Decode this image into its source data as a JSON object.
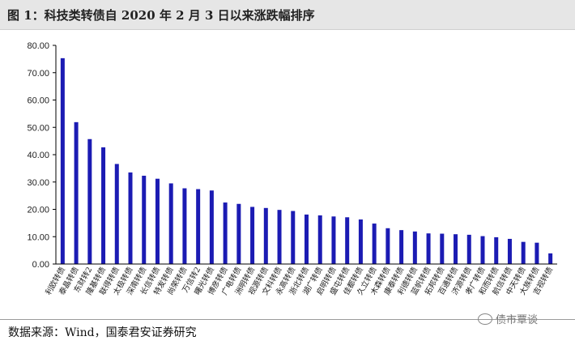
{
  "header": {
    "title": "图 1：科技类转债自 2020 年 2 月 3 日以来涨跌幅排序"
  },
  "footer": {
    "source": "数据来源：Wind，国泰君安证券研究",
    "watermark": "债市覃谈"
  },
  "colors": {
    "bar": "#1b1bb3",
    "title_background": "#e6e6e6"
  },
  "chart_data": {
    "type": "bar",
    "title": "",
    "xlabel": "",
    "ylabel": "",
    "ylim": [
      0,
      80
    ],
    "yticks": [
      "0.00",
      "10.00",
      "20.00",
      "30.00",
      "40.00",
      "50.00",
      "60.00",
      "70.00",
      "80.00"
    ],
    "grid": false,
    "legend": "none",
    "categories": [
      "利欧转债",
      "泰晶转债",
      "东财转2",
      "隆基转债",
      "联得转债",
      "太极转债",
      "深南转债",
      "长信转债",
      "特发转债",
      "尚荣转债",
      "万信转2",
      "曙光转债",
      "博彦转债",
      "广电转债",
      "洲明转债",
      "视源转债",
      "文科转债",
      "永高转债",
      "浙北转债",
      "湖广转债",
      "启明转债",
      "盛屯转债",
      "佳都转债",
      "久立转债",
      "木森转债",
      "康泰转债",
      "利德转债",
      "蓝帆转债",
      "拓邦转债",
      "百通转债",
      "济源转债",
      "孝广转债",
      "和而转债",
      "航信转债",
      "中天转债",
      "大族转债",
      "吉视转债"
    ],
    "values": [
      75.3,
      51.9,
      45.7,
      42.7,
      36.6,
      33.5,
      32.3,
      31.2,
      29.5,
      27.7,
      27.4,
      26.9,
      22.5,
      22.0,
      20.9,
      20.5,
      19.8,
      19.4,
      18.1,
      17.8,
      17.4,
      17.1,
      16.3,
      14.8,
      13.1,
      12.4,
      11.9,
      11.2,
      11.1,
      10.9,
      10.7,
      10.2,
      9.8,
      9.2,
      8.1,
      7.8,
      3.9
    ]
  }
}
